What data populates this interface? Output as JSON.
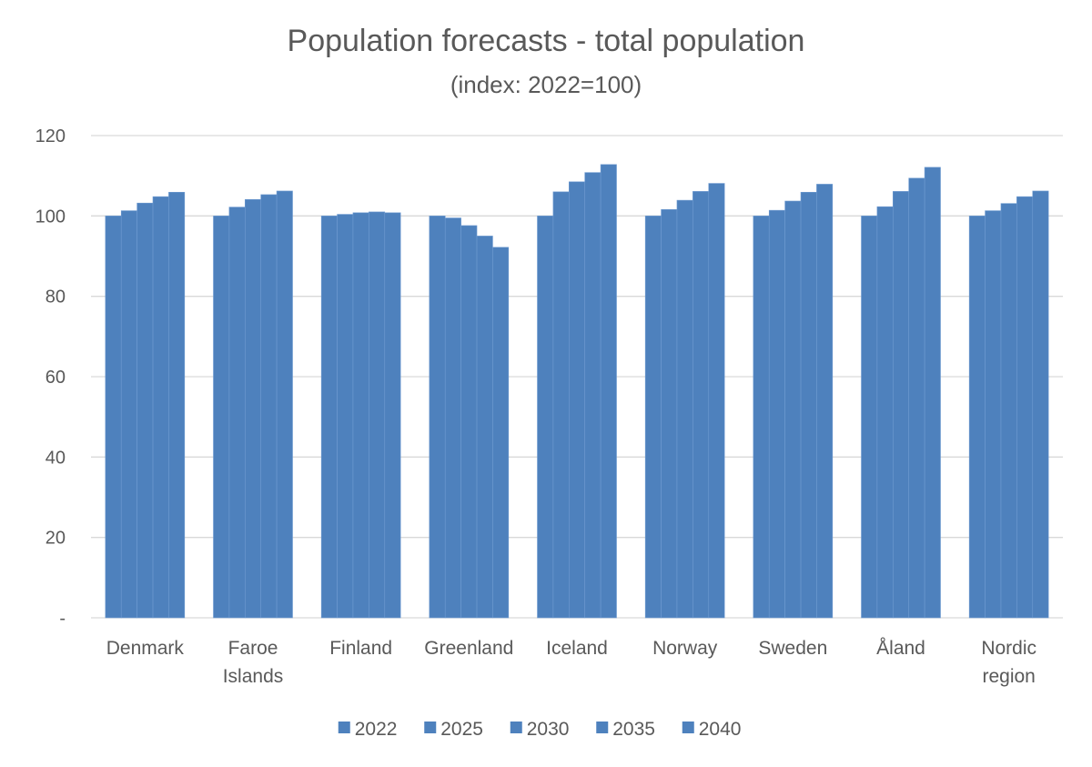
{
  "chart_data": {
    "type": "bar",
    "title": "Population forecasts - total population",
    "subtitle": "(index: 2022=100)",
    "xlabel": "",
    "ylabel": "",
    "ylim": [
      0,
      120
    ],
    "yticks": [
      {
        "value": 0,
        "label": "-"
      },
      {
        "value": 20,
        "label": "20"
      },
      {
        "value": 40,
        "label": "40"
      },
      {
        "value": 60,
        "label": "60"
      },
      {
        "value": 80,
        "label": "80"
      },
      {
        "value": 100,
        "label": "100"
      },
      {
        "value": 120,
        "label": "120"
      }
    ],
    "grid": true,
    "legend_position": "bottom",
    "bar_color": "#4e81bd",
    "categories": [
      [
        "Denmark"
      ],
      [
        "Faroe",
        "Islands"
      ],
      [
        "Finland"
      ],
      [
        "Greenland"
      ],
      [
        "Iceland"
      ],
      [
        "Norway"
      ],
      [
        "Sweden"
      ],
      [
        "Åland"
      ],
      [
        "Nordic",
        "region"
      ]
    ],
    "series": [
      {
        "name": "2022",
        "values": [
          100,
          100,
          100,
          100,
          100,
          100,
          100,
          100,
          100
        ]
      },
      {
        "name": "2025",
        "values": [
          101.3,
          102.2,
          100.4,
          99.5,
          106,
          101.6,
          101.4,
          102.3,
          101.3
        ]
      },
      {
        "name": "2030",
        "values": [
          103.2,
          104.1,
          100.8,
          97.6,
          108.5,
          103.9,
          103.7,
          106.1,
          103.1
        ]
      },
      {
        "name": "2035",
        "values": [
          104.8,
          105.3,
          101,
          95,
          110.8,
          106.1,
          105.9,
          109.4,
          104.8
        ]
      },
      {
        "name": "2040",
        "values": [
          105.9,
          106.2,
          100.8,
          92.2,
          112.8,
          108.1,
          107.9,
          112.1,
          106.2
        ]
      }
    ]
  }
}
